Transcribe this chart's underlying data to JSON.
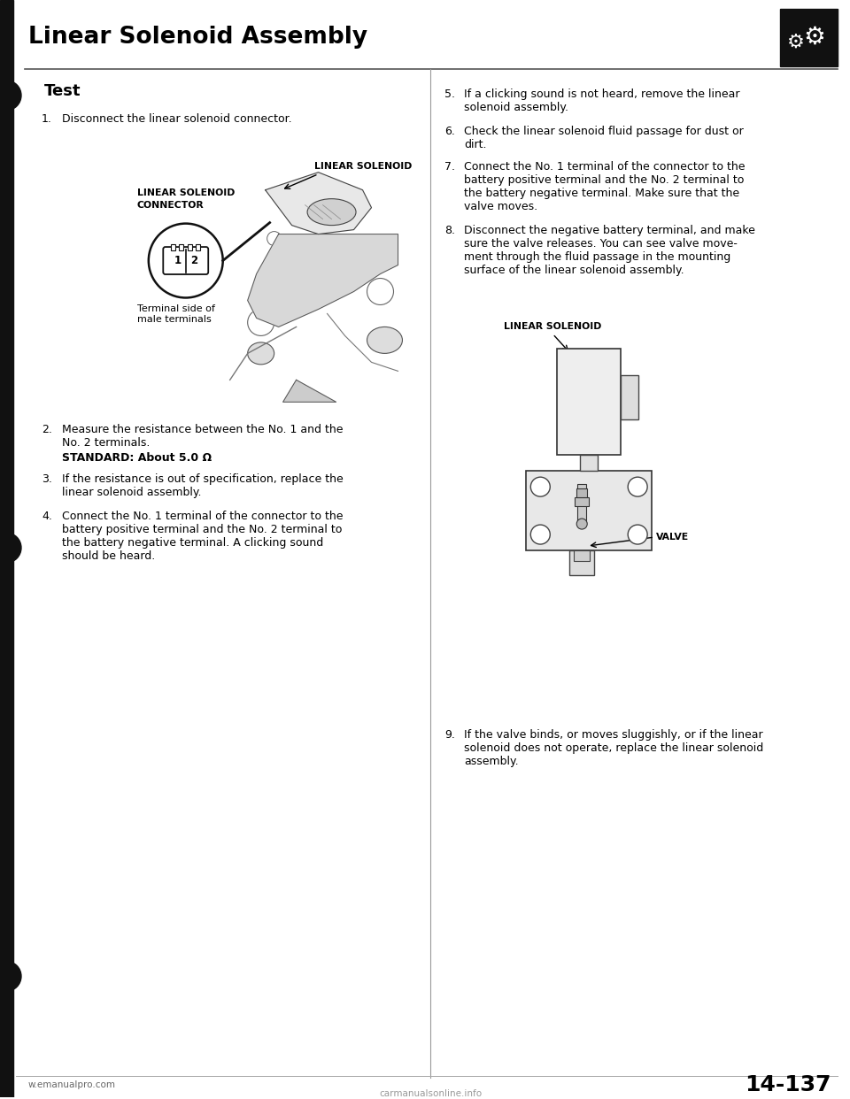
{
  "title": "Linear Solenoid Assembly",
  "section": "Test",
  "bg_color": "#ffffff",
  "text_color": "#000000",
  "page_number": "14-137",
  "diagram1_label_top": "LINEAR SOLENOID",
  "diagram1_label_left1": "LINEAR SOLENOID",
  "diagram1_label_left2": "CONNECTOR",
  "diagram1_terminal_label": "Terminal side of\nmale terminals",
  "diagram2_label_top": "LINEAR SOLENOID",
  "diagram2_valve_label": "VALVE",
  "footer_left": "w.emanualpro.com",
  "watermark": "carmanualsonline.info",
  "page_number_display": "14-137",
  "left_items": [
    {
      "num": "1.",
      "text": "Disconnect the linear solenoid connector.",
      "indent": 70
    },
    {
      "num": "2.",
      "text": "Measure the resistance between the No. 1 and the\nNo. 2 terminals.",
      "indent": 70
    },
    {
      "num": "",
      "text": "STANDARD: About 5.0 Ω",
      "bold": true,
      "indent": 70
    },
    {
      "num": "3.",
      "text": "If the resistance is out of specification, replace the\nlinear solenoid assembly.",
      "indent": 70
    },
    {
      "num": "4.",
      "text": "Connect the No. 1 terminal of the connector to the\nbattery positive terminal and the No. 2 terminal to\nthe battery negative terminal. A clicking sound\nshould be heard.",
      "indent": 70
    }
  ],
  "right_items": [
    {
      "num": "5.",
      "text": "If a clicking sound is not heard, remove the linear\nsolenoid assembly.",
      "indent": 555
    },
    {
      "num": "6.",
      "text": "Check the linear solenoid fluid passage for dust or\ndirt.",
      "indent": 555
    },
    {
      "num": "7.",
      "text": "Connect the No. 1 terminal of the connector to the\nbattery positive terminal and the No. 2 terminal to\nthe battery negative terminal. Make sure that the\nvalve moves.",
      "indent": 555
    },
    {
      "num": "8.",
      "text": "Disconnect the negative battery terminal, and make\nsure the valve releases. You can see valve move-\nment through the fluid passage in the mounting\nsurface of the linear solenoid assembly.",
      "indent": 555
    },
    {
      "num": "9.",
      "text": "If the valve binds, or moves sluggishly, or if the linear\nsolenoid does not operate, replace the linear solenoid\nassembly.",
      "indent": 555
    }
  ]
}
